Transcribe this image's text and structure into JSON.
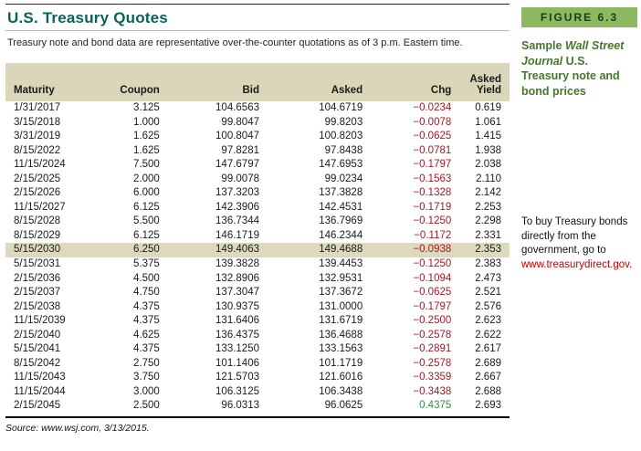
{
  "title": "U.S. Treasury Quotes",
  "subtitle": "Treasury note and bond data are representative over-the-counter quotations as of 3 p.m. Eastern time.",
  "source": "Source: www.wsj.com, 3/13/2015.",
  "colors": {
    "title": "#0a635a",
    "header_band": "#d9d6ba",
    "highlight_row": "#dcd9bd",
    "chg_negative": "#9e1c29",
    "chg_positive": "#3a8a4d",
    "badge_bg": "#8cb85f",
    "badge_text": "#1d3d15",
    "caption_green": "#45772d",
    "link_red": "#c00000"
  },
  "sidebar": {
    "badge": "FIGURE 6.3",
    "caption": {
      "pre": "Sample ",
      "italic": "Wall Street Journal",
      "post": " U.S. Treasury note and bond prices"
    },
    "note": {
      "text": "To buy Treasury bonds directly from the government, go to ",
      "link": "www.treasurydirect.gov."
    }
  },
  "table": {
    "columns": [
      "Maturity",
      "Coupon",
      "Bid",
      "Asked",
      "Chg",
      "Asked Yield"
    ],
    "column_keys": [
      "maturity",
      "coupon",
      "bid",
      "asked",
      "chg",
      "asked_yield"
    ],
    "highlighted_row_index": 10,
    "rows": [
      [
        "1/31/2017",
        "3.125",
        "104.6563",
        "104.6719",
        "−0.0234",
        "0.619"
      ],
      [
        "3/15/2018",
        "1.000",
        "99.8047",
        "99.8203",
        "−0.0078",
        "1.061"
      ],
      [
        "3/31/2019",
        "1.625",
        "100.8047",
        "100.8203",
        "−0.0625",
        "1.415"
      ],
      [
        "8/15/2022",
        "1.625",
        "97.8281",
        "97.8438",
        "−0.0781",
        "1.938"
      ],
      [
        "11/15/2024",
        "7.500",
        "147.6797",
        "147.6953",
        "−0.1797",
        "2.038"
      ],
      [
        "2/15/2025",
        "2.000",
        "99.0078",
        "99.0234",
        "−0.1563",
        "2.110"
      ],
      [
        "2/15/2026",
        "6.000",
        "137.3203",
        "137.3828",
        "−0.1328",
        "2.142"
      ],
      [
        "11/15/2027",
        "6.125",
        "142.3906",
        "142.4531",
        "−0.1719",
        "2.253"
      ],
      [
        "8/15/2028",
        "5.500",
        "136.7344",
        "136.7969",
        "−0.1250",
        "2.298"
      ],
      [
        "8/15/2029",
        "6.125",
        "146.1719",
        "146.2344",
        "−0.1172",
        "2.331"
      ],
      [
        "5/15/2030",
        "6.250",
        "149.4063",
        "149.4688",
        "−0.0938",
        "2.353"
      ],
      [
        "5/15/2031",
        "5.375",
        "139.3828",
        "139.4453",
        "−0.1250",
        "2.383"
      ],
      [
        "2/15/2036",
        "4.500",
        "132.8906",
        "132.9531",
        "−0.1094",
        "2.473"
      ],
      [
        "2/15/2037",
        "4.750",
        "137.3047",
        "137.3672",
        "−0.0625",
        "2.521"
      ],
      [
        "2/15/2038",
        "4.375",
        "130.9375",
        "131.0000",
        "−0.1797",
        "2.576"
      ],
      [
        "11/15/2039",
        "4.375",
        "131.6406",
        "131.6719",
        "−0.2500",
        "2.623"
      ],
      [
        "2/15/2040",
        "4.625",
        "136.4375",
        "136.4688",
        "−0.2578",
        "2.622"
      ],
      [
        "5/15/2041",
        "4.375",
        "133.1250",
        "133.1563",
        "−0.2891",
        "2.617"
      ],
      [
        "8/15/2042",
        "2.750",
        "101.1406",
        "101.1719",
        "−0.2578",
        "2.689"
      ],
      [
        "11/15/2043",
        "3.750",
        "121.5703",
        "121.6016",
        "−0.3359",
        "2.667"
      ],
      [
        "11/15/2044",
        "3.000",
        "106.3125",
        "106.3438",
        "−0.3438",
        "2.688"
      ],
      [
        "2/15/2045",
        "2.500",
        "96.0313",
        "96.0625",
        "0.4375",
        "2.693"
      ]
    ]
  }
}
